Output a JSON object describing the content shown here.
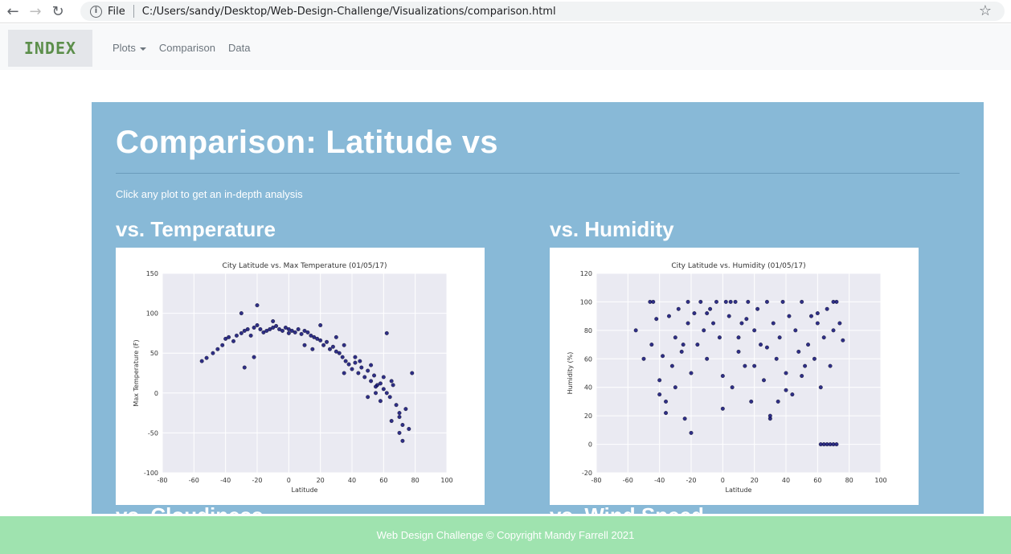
{
  "browser": {
    "file_label": "File",
    "url": "C:/Users/sandy/Desktop/Web-Design-Challenge/Visualizations/comparison.html"
  },
  "navbar": {
    "brand": "INDEX",
    "links": [
      "Plots",
      "Comparison",
      "Data"
    ]
  },
  "main": {
    "title": "Comparison: Latitude vs",
    "lead": "Click any plot to get an in-depth analysis",
    "headings": [
      "vs. Temperature",
      "vs. Humidity",
      "vs. Cloudiness",
      "vs. Wind Speed"
    ]
  },
  "footer": {
    "text": "Web Design Challenge © Copyright Mandy Farrell 2021"
  },
  "chart_data": [
    {
      "type": "scatter",
      "title": "City Latitude vs. Max Temperature (01/05/17)",
      "xlabel": "Latitude",
      "ylabel": "Max Temperature (F)",
      "xlim": [
        -80,
        100
      ],
      "ylim": [
        -100,
        150
      ],
      "xticks": [
        -80,
        -60,
        -40,
        -20,
        0,
        20,
        40,
        60,
        80,
        100
      ],
      "yticks": [
        -100,
        -50,
        0,
        50,
        100,
        150
      ],
      "grid": true,
      "color": "#0d0d73",
      "x": [
        -55,
        -52,
        -48,
        -45,
        -42,
        -40,
        -38,
        -35,
        -33,
        -30,
        -28,
        -26,
        -24,
        -22,
        -20,
        -18,
        -16,
        -14,
        -12,
        -10,
        -8,
        -6,
        -4,
        -2,
        0,
        2,
        4,
        6,
        8,
        10,
        12,
        14,
        16,
        18,
        20,
        22,
        24,
        26,
        28,
        30,
        32,
        34,
        36,
        38,
        40,
        42,
        44,
        46,
        48,
        50,
        52,
        54,
        56,
        58,
        60,
        62,
        64,
        66,
        68,
        70,
        72,
        74,
        76,
        78,
        -30,
        -20,
        -10,
        0,
        10,
        20,
        30,
        35,
        45,
        50,
        55,
        60,
        65,
        70,
        -22,
        15,
        55,
        65,
        70,
        72,
        -28,
        35,
        42,
        52,
        58,
        62
      ],
      "y": [
        40,
        44,
        50,
        55,
        60,
        68,
        70,
        65,
        72,
        75,
        78,
        80,
        72,
        82,
        85,
        80,
        76,
        78,
        80,
        82,
        84,
        80,
        78,
        82,
        80,
        78,
        76,
        80,
        74,
        78,
        76,
        72,
        70,
        68,
        66,
        60,
        64,
        55,
        58,
        52,
        50,
        45,
        40,
        36,
        30,
        38,
        25,
        32,
        20,
        28,
        15,
        22,
        10,
        12,
        5,
        0,
        -5,
        10,
        -15,
        -25,
        -40,
        -20,
        -45,
        25,
        100,
        110,
        90,
        75,
        60,
        85,
        70,
        25,
        40,
        -5,
        8,
        20,
        -35,
        -50,
        45,
        55,
        0,
        15,
        -30,
        -60,
        32,
        60,
        45,
        35,
        -10,
        75
      ]
    },
    {
      "type": "scatter",
      "title": "City Latitude vs. Humidity (01/05/17)",
      "xlabel": "Latitude",
      "ylabel": "Humidity (%)",
      "xlim": [
        -80,
        100
      ],
      "ylim": [
        -20,
        120
      ],
      "xticks": [
        -80,
        -60,
        -40,
        -20,
        0,
        20,
        40,
        60,
        80,
        100
      ],
      "yticks": [
        -20,
        0,
        20,
        40,
        60,
        80,
        100,
        120
      ],
      "grid": true,
      "color": "#0d0d73",
      "x": [
        -55,
        -50,
        -46,
        -45,
        -42,
        -40,
        -38,
        -36,
        -34,
        -32,
        -30,
        -28,
        -26,
        -24,
        -22,
        -20,
        -18,
        -16,
        -14,
        -12,
        -10,
        -8,
        -6,
        -4,
        -2,
        0,
        2,
        4,
        6,
        8,
        10,
        12,
        14,
        16,
        18,
        20,
        22,
        24,
        26,
        28,
        30,
        32,
        34,
        36,
        38,
        40,
        42,
        44,
        46,
        48,
        50,
        52,
        54,
        56,
        58,
        60,
        62,
        64,
        66,
        68,
        70,
        72,
        74,
        76,
        -44,
        -30,
        -20,
        -10,
        0,
        10,
        20,
        30,
        40,
        50,
        60,
        70,
        -40,
        -36,
        -25,
        -22,
        5,
        15,
        28,
        35,
        62,
        64,
        66,
        68,
        70,
        72
      ],
      "y": [
        80,
        60,
        100,
        70,
        88,
        35,
        62,
        30,
        90,
        55,
        75,
        95,
        65,
        18,
        85,
        50,
        92,
        70,
        100,
        80,
        60,
        95,
        85,
        100,
        75,
        48,
        100,
        90,
        40,
        100,
        65,
        85,
        55,
        100,
        30,
        80,
        95,
        70,
        45,
        100,
        18,
        85,
        60,
        75,
        100,
        50,
        90,
        35,
        80,
        65,
        100,
        55,
        70,
        90,
        60,
        85,
        40,
        75,
        95,
        55,
        80,
        100,
        85,
        73,
        100,
        40,
        8,
        92,
        25,
        75,
        55,
        20,
        38,
        48,
        92,
        100,
        45,
        22,
        70,
        100,
        100,
        88,
        68,
        30,
        0,
        0,
        0,
        0,
        0,
        0
      ]
    }
  ]
}
